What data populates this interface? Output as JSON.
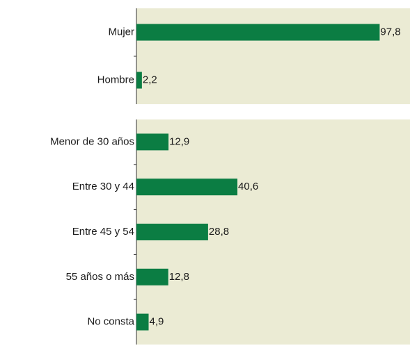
{
  "chart_data": [
    {
      "type": "bar",
      "orientation": "horizontal",
      "categories": [
        "Mujer",
        "Hombre"
      ],
      "values": [
        97.8,
        2.2
      ],
      "value_labels": [
        "97,8",
        "2,2"
      ],
      "color": "#0b7d43",
      "xlim": [
        0,
        110
      ]
    },
    {
      "type": "bar",
      "orientation": "horizontal",
      "categories": [
        "Menor de 30 años",
        "Entre 30 y 44",
        "Entre 45 y 54",
        "55 años o más",
        "No consta"
      ],
      "values": [
        12.9,
        40.6,
        28.8,
        12.8,
        4.9
      ],
      "value_labels": [
        "12,9",
        "40,6",
        "28,8",
        "12,8",
        "4,9"
      ],
      "color": "#0b7d43",
      "xlim": [
        0,
        110
      ]
    }
  ]
}
